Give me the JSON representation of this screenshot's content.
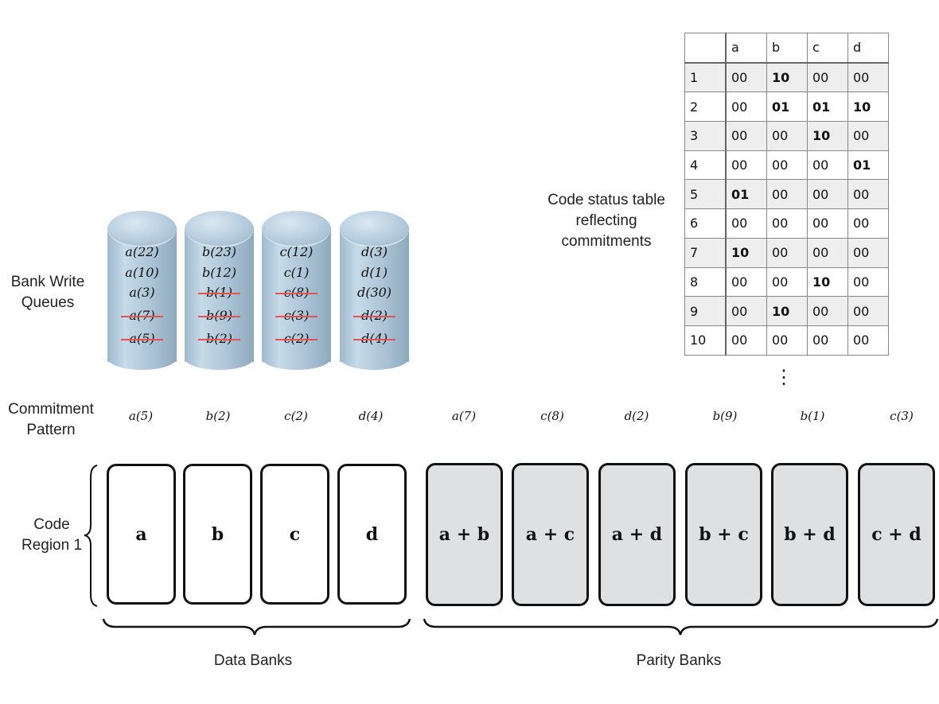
{
  "labels": {
    "bank_write_queues": "Bank Write Queues",
    "commitment_pattern": "Commitment Pattern",
    "code_region": "Code Region 1",
    "code_status": "Code status table reflecting commitments",
    "data_banks": "Data Banks",
    "parity_banks": "Parity Banks",
    "ellipsis": "⋮"
  },
  "queues": [
    {
      "items": [
        {
          "t": "a(22)",
          "struck": false
        },
        {
          "t": "a(10)",
          "struck": false
        },
        {
          "t": "a(3)",
          "struck": false
        },
        {
          "t": "a(7)",
          "struck": true
        },
        {
          "t": "a(5)",
          "struck": true
        }
      ]
    },
    {
      "items": [
        {
          "t": "b(23)",
          "struck": false
        },
        {
          "t": "b(12)",
          "struck": false
        },
        {
          "t": "b(1)",
          "struck": true
        },
        {
          "t": "b(9)",
          "struck": true
        },
        {
          "t": "b(2)",
          "struck": true
        }
      ]
    },
    {
      "items": [
        {
          "t": "c(12)",
          "struck": false
        },
        {
          "t": "c(1)",
          "struck": false
        },
        {
          "t": "c(8)",
          "struck": true
        },
        {
          "t": "c(3)",
          "struck": true
        },
        {
          "t": "c(2)",
          "struck": true
        }
      ]
    },
    {
      "items": [
        {
          "t": "d(3)",
          "struck": false
        },
        {
          "t": "d(1)",
          "struck": false
        },
        {
          "t": "d(30)",
          "struck": false
        },
        {
          "t": "d(2)",
          "struck": true
        },
        {
          "t": "d(4)",
          "struck": true
        }
      ]
    }
  ],
  "commitment_pattern": [
    "a(5)",
    "b(2)",
    "c(2)",
    "d(4)",
    "a(7)",
    "c(8)",
    "d(2)",
    "b(9)",
    "b(1)",
    "c(3)"
  ],
  "data_banks": [
    "a",
    "b",
    "c",
    "d"
  ],
  "parity_banks": [
    "a + b",
    "a + c",
    "a + d",
    "b + c",
    "b + d",
    "c + d"
  ],
  "table": {
    "columns": [
      "",
      "a",
      "b",
      "c",
      "d"
    ],
    "rows": [
      {
        "id": "1",
        "cells": [
          "00",
          "10",
          "00",
          "00"
        ],
        "bold": [
          1
        ]
      },
      {
        "id": "2",
        "cells": [
          "00",
          "01",
          "01",
          "10"
        ],
        "bold": [
          1,
          2,
          3
        ]
      },
      {
        "id": "3",
        "cells": [
          "00",
          "00",
          "10",
          "00"
        ],
        "bold": [
          2
        ]
      },
      {
        "id": "4",
        "cells": [
          "00",
          "00",
          "00",
          "01"
        ],
        "bold": [
          3
        ]
      },
      {
        "id": "5",
        "cells": [
          "01",
          "00",
          "00",
          "00"
        ],
        "bold": [
          0
        ]
      },
      {
        "id": "6",
        "cells": [
          "00",
          "00",
          "00",
          "00"
        ],
        "bold": []
      },
      {
        "id": "7",
        "cells": [
          "10",
          "00",
          "00",
          "00"
        ],
        "bold": [
          0
        ]
      },
      {
        "id": "8",
        "cells": [
          "00",
          "00",
          "10",
          "00"
        ],
        "bold": [
          2
        ]
      },
      {
        "id": "9",
        "cells": [
          "00",
          "10",
          "00",
          "00"
        ],
        "bold": [
          1
        ]
      },
      {
        "id": "10",
        "cells": [
          "00",
          "00",
          "00",
          "00"
        ],
        "bold": []
      }
    ]
  },
  "colors": {
    "strike": "#e8524f",
    "parity_fill": "#dfe0e2",
    "cylinder": "#aec6d8"
  }
}
